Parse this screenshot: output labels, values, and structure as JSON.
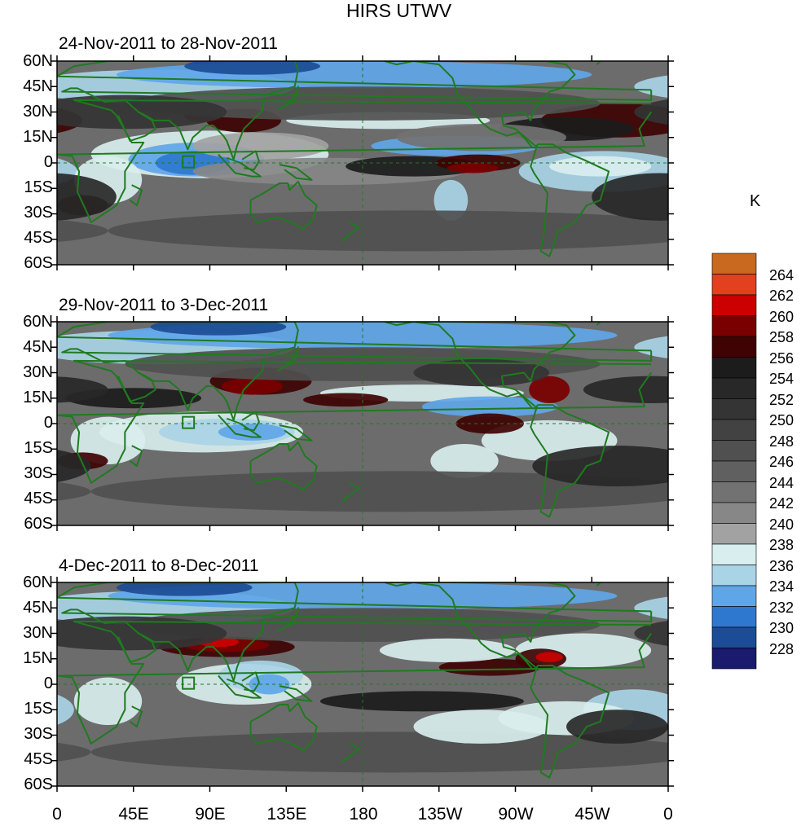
{
  "title": "HIRS UTWV",
  "unit_label": "K",
  "panels": [
    {
      "period": "24-Nov-2011 to 28-Nov-2011"
    },
    {
      "period": "29-Nov-2011 to 3-Dec-2011"
    },
    {
      "period": "4-Dec-2011 to 8-Dec-2011"
    }
  ],
  "lat_labels": [
    "60N",
    "45N",
    "30N",
    "15N",
    "0",
    "15S",
    "30S",
    "45S",
    "60S"
  ],
  "lon_labels": [
    "0",
    "45E",
    "90E",
    "135E",
    "180",
    "135W",
    "90W",
    "45W",
    "0"
  ],
  "colorbar": {
    "labels": [
      "264",
      "262",
      "260",
      "258",
      "256",
      "254",
      "252",
      "250",
      "248",
      "246",
      "244",
      "242",
      "240",
      "238",
      "236",
      "234",
      "232",
      "230",
      "228"
    ],
    "colors": [
      "#c8691f",
      "#e2401f",
      "#cc0000",
      "#7a0000",
      "#3f0303",
      "#1c1c1c",
      "#282828",
      "#343434",
      "#424242",
      "#505050",
      "#606060",
      "#727272",
      "#878787",
      "#a2a2a2",
      "#d9eeee",
      "#a9d4e6",
      "#5fa6e8",
      "#2e78cf",
      "#1c4c95",
      "#1a1a6e"
    ]
  },
  "map_style": {
    "coast_color": "#1f7a1f",
    "ocean_background": "#6c6c6c"
  }
}
